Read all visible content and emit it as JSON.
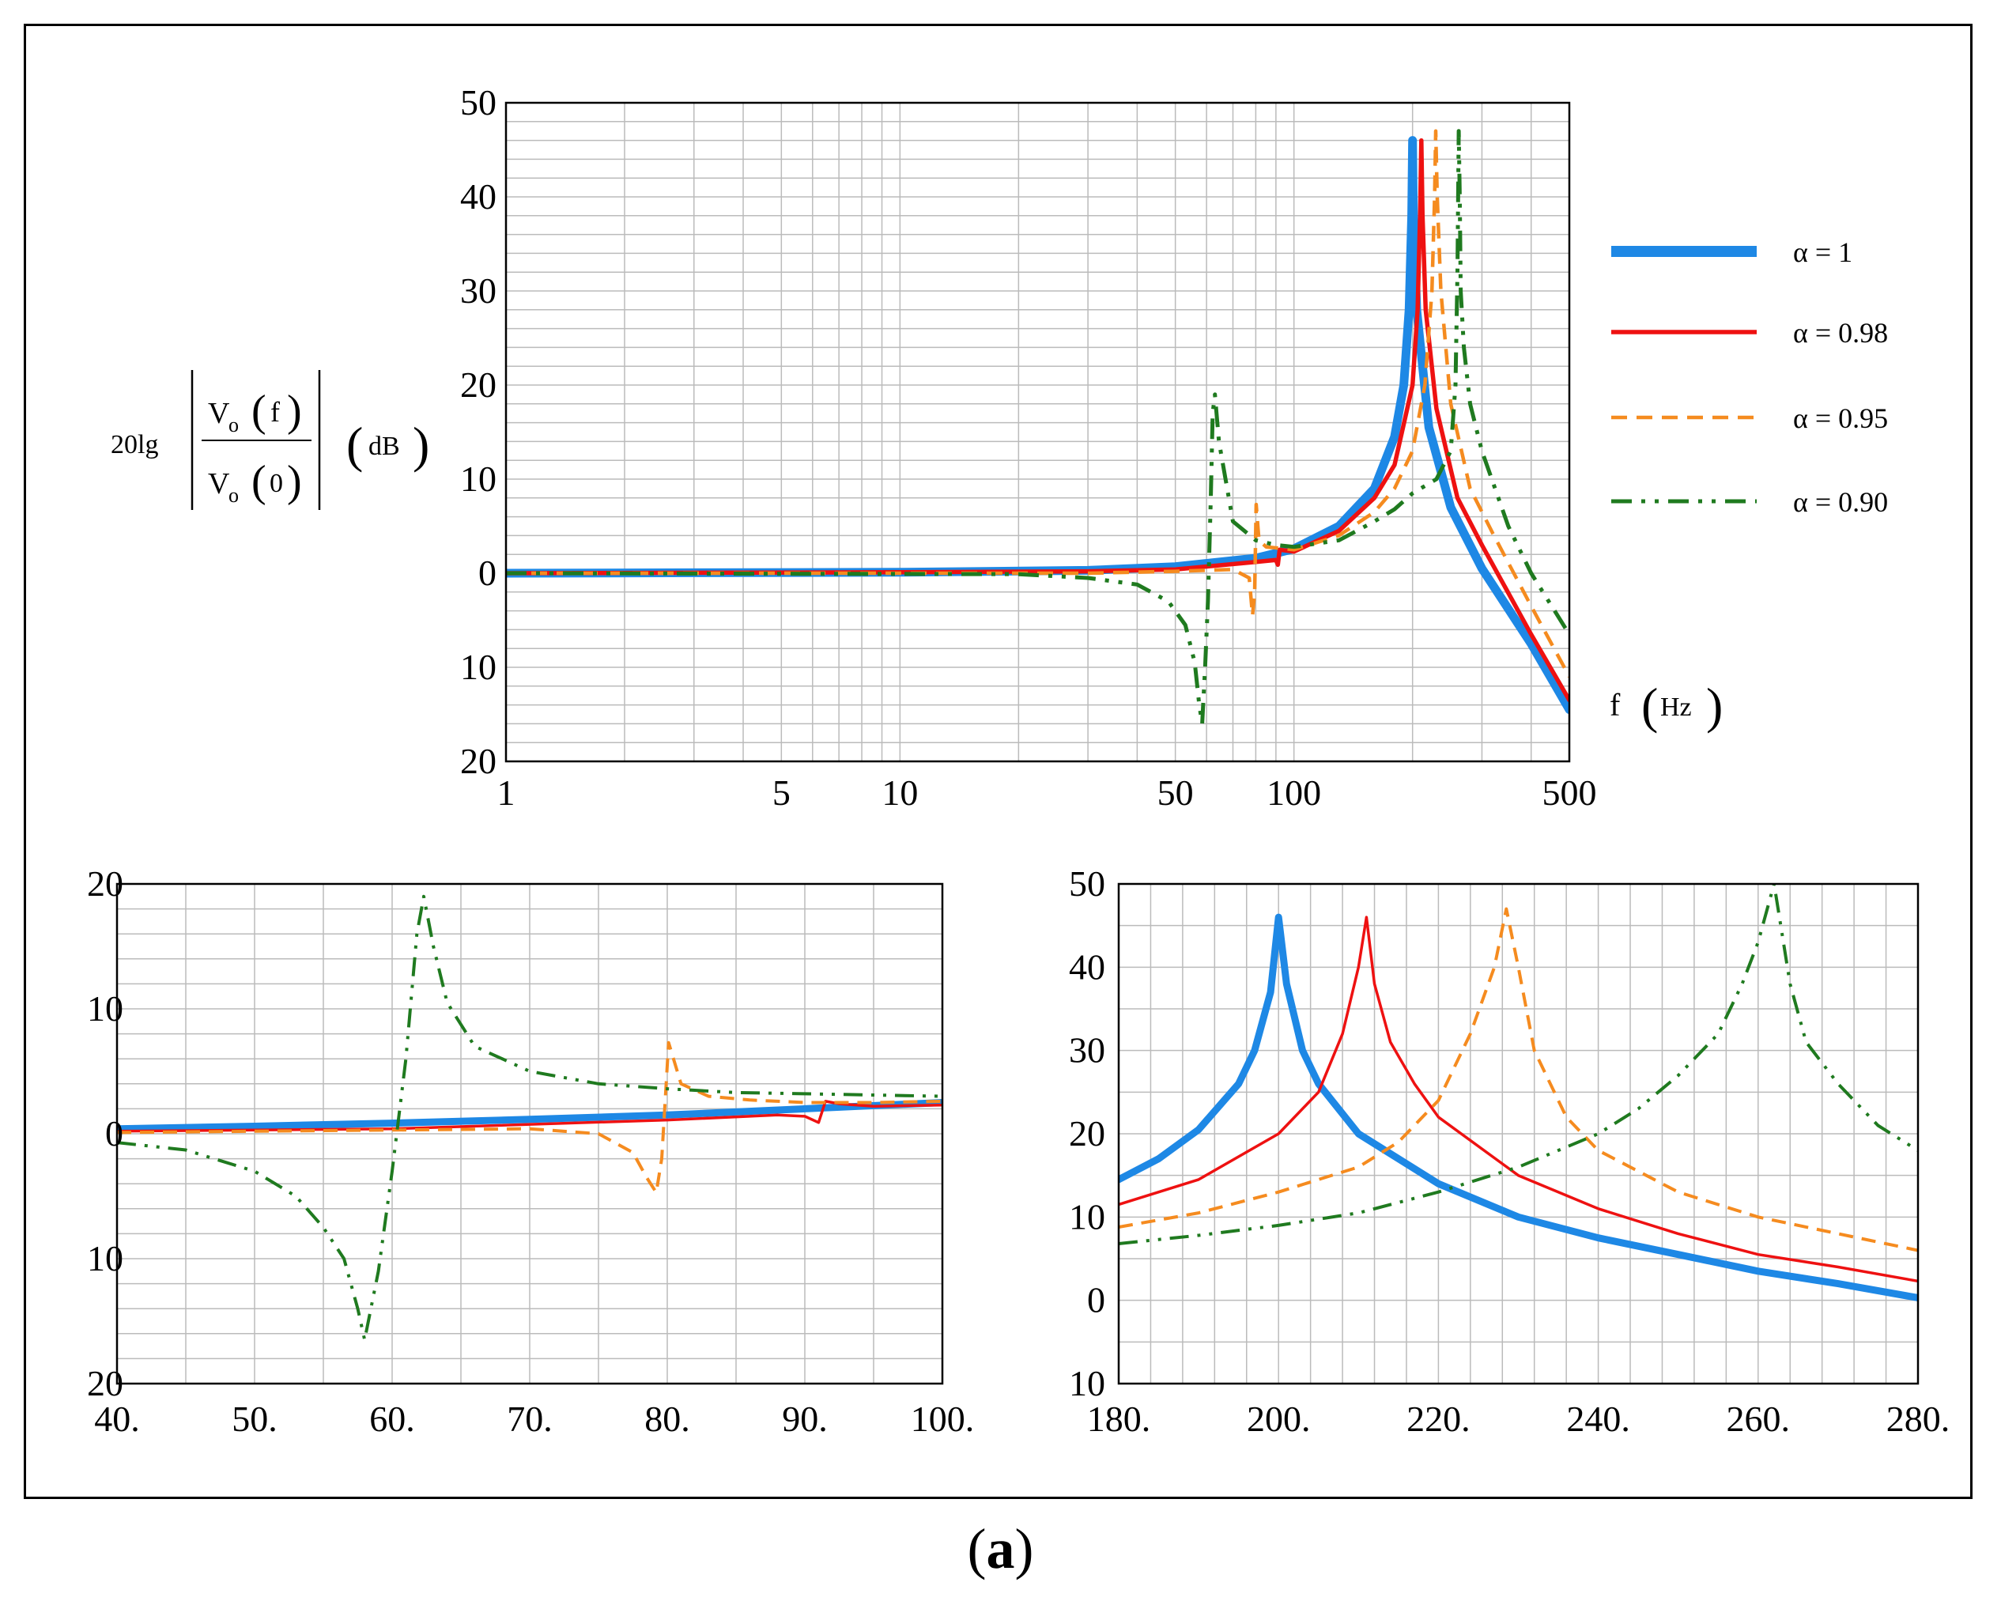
{
  "panel_label": {
    "open": "(",
    "letter": "a",
    "close": ")"
  },
  "colors": {
    "alpha_1": "#1E88E5",
    "alpha_098": "#EE1111",
    "alpha_095": "#F58B1F",
    "alpha_090": "#1F7A1F",
    "grid": "#BBBBBB"
  },
  "y_axis_label": {
    "prefix": "20lg",
    "numerator_v": "V",
    "numerator_sub": "o",
    "numerator_arg": "f",
    "denominator_v": "V",
    "denominator_sub": "o",
    "denominator_arg": "0",
    "unit": "dB"
  },
  "x_axis_label": {
    "var": "f",
    "unit": "Hz"
  },
  "legend": [
    {
      "label": "α = 1",
      "style": "solid-thick",
      "color_key": "alpha_1"
    },
    {
      "label": "α = 0.98",
      "style": "solid",
      "color_key": "alpha_098"
    },
    {
      "label": "α = 0.95",
      "style": "dashed",
      "color_key": "alpha_095"
    },
    {
      "label": "α = 0.90",
      "style": "dash-dot-dot",
      "color_key": "alpha_090"
    }
  ],
  "chart_data": [
    {
      "id": "main",
      "type": "line",
      "x_scale": "log",
      "xlim": [
        1,
        500
      ],
      "ylim": [
        -20,
        50
      ],
      "x_ticks": [
        1,
        5,
        10,
        50,
        100,
        500
      ],
      "x_tick_labels": [
        "1",
        "5",
        "10",
        "50",
        "100",
        "500"
      ],
      "y_ticks": [
        50,
        40,
        30,
        20,
        10,
        0,
        -10,
        -20
      ],
      "y_tick_labels": [
        "50",
        "40",
        "30",
        "20",
        "10",
        "0",
        "10",
        "20"
      ],
      "series": [
        {
          "name": "α = 1",
          "x": [
            1,
            10,
            30,
            50,
            80,
            100,
            130,
            160,
            180,
            190,
            196,
            199,
            200,
            201,
            205,
            220,
            250,
            300,
            400,
            500
          ],
          "y": [
            0,
            0.1,
            0.3,
            0.7,
            1.6,
            2.6,
            5,
            9,
            14.5,
            20,
            28,
            38,
            46,
            38,
            28,
            15.5,
            7,
            0.5,
            -7.5,
            -14.5
          ]
        },
        {
          "name": "α = 0.98",
          "x": [
            1,
            10,
            30,
            50,
            80,
            90,
            91,
            92,
            100,
            130,
            160,
            180,
            200,
            206,
            209,
            210.5,
            212,
            216,
            230,
            260,
            300,
            400,
            500
          ],
          "y": [
            0,
            0.1,
            0.2,
            0.4,
            1.2,
            1.4,
            0.9,
            2.5,
            2.3,
            4.5,
            8,
            11.5,
            20,
            28,
            38,
            46,
            38,
            28,
            17.5,
            8,
            3,
            -6.5,
            -13.5
          ]
        },
        {
          "name": "α = 0.95",
          "x": [
            1,
            30,
            50,
            70,
            77,
            78.5,
            79.5,
            80.2,
            81.5,
            85,
            100,
            130,
            160,
            180,
            200,
            215,
            224,
            227.5,
            229,
            231,
            236,
            250,
            280,
            320,
            400,
            500
          ],
          "y": [
            0,
            0,
            0.2,
            0.4,
            -0.5,
            -4.5,
            -2,
            7.3,
            3.5,
            2.8,
            2.5,
            4,
            6.5,
            9,
            13,
            20,
            30,
            40,
            47,
            40,
            30,
            18,
            9,
            4.2,
            -3.5,
            -11
          ]
        },
        {
          "name": "α = 0.90",
          "x": [
            1,
            20,
            30,
            40,
            48,
            53,
            56,
            57.5,
            58.5,
            59.5,
            60.5,
            61.5,
            62.2,
            63,
            64.5,
            70,
            80,
            90,
            100,
            130,
            160,
            180,
            200,
            230,
            250,
            257,
            260,
            262,
            263.5,
            265,
            270,
            280,
            300,
            350,
            400,
            500
          ],
          "y": [
            0,
            -0.1,
            -0.5,
            -1.2,
            -3,
            -5.5,
            -9.5,
            -14,
            -16,
            -10,
            -3,
            8,
            17,
            19,
            14,
            5.5,
            3.5,
            3,
            2.8,
            3.5,
            5.5,
            6.8,
            8.5,
            10,
            13,
            20,
            32,
            47,
            40,
            30,
            24,
            18,
            13,
            5,
            0,
            -6.5
          ]
        }
      ]
    },
    {
      "id": "zoom-low",
      "type": "line",
      "x_scale": "linear",
      "xlim": [
        40,
        100
      ],
      "ylim": [
        -20,
        20
      ],
      "x_ticks": [
        40,
        50,
        60,
        70,
        80,
        90,
        100
      ],
      "x_tick_labels": [
        "40.",
        "50.",
        "60.",
        "70.",
        "80.",
        "90.",
        "100."
      ],
      "y_ticks": [
        20,
        10,
        0,
        -10,
        -20
      ],
      "y_tick_labels": [
        "20",
        "10",
        "0",
        "10",
        "20"
      ],
      "series": [
        {
          "name": "α = 1",
          "x": [
            40,
            50,
            60,
            70,
            80,
            90,
            100
          ],
          "y": [
            0.4,
            0.6,
            0.85,
            1.15,
            1.5,
            2.0,
            2.5
          ]
        },
        {
          "name": "α = 0.98",
          "x": [
            40,
            60,
            80,
            88,
            90,
            91,
            91.5,
            92.5,
            95,
            100
          ],
          "y": [
            0.2,
            0.4,
            1.1,
            1.5,
            1.4,
            0.9,
            2.6,
            2.4,
            2.2,
            2.3
          ]
        },
        {
          "name": "α = 0.95",
          "x": [
            40,
            50,
            60,
            70,
            75,
            77.5,
            78.5,
            79.2,
            79.6,
            80.1,
            81,
            83,
            86,
            90,
            95,
            100
          ],
          "y": [
            0.1,
            0.2,
            0.3,
            0.4,
            0,
            -1.5,
            -3.5,
            -4.7,
            -2,
            7.3,
            4,
            3,
            2.7,
            2.5,
            2.5,
            2.6
          ]
        },
        {
          "name": "α = 0.90",
          "x": [
            40,
            45,
            50,
            53,
            55,
            56.5,
            57.5,
            58,
            59,
            60,
            61,
            61.8,
            62.3,
            63,
            64,
            66,
            70,
            75,
            80,
            85,
            90,
            95,
            100
          ],
          "y": [
            -0.7,
            -1.3,
            -3,
            -5,
            -7.5,
            -10,
            -14,
            -16.5,
            -11,
            -3,
            6,
            16,
            19,
            15,
            10.5,
            7,
            5,
            4,
            3.6,
            3.3,
            3.2,
            3.1,
            3
          ]
        }
      ]
    },
    {
      "id": "zoom-high",
      "type": "line",
      "x_scale": "linear",
      "xlim": [
        180,
        280
      ],
      "ylim": [
        -10,
        50
      ],
      "x_ticks": [
        180,
        200,
        220,
        240,
        260,
        280
      ],
      "x_tick_labels": [
        "180.",
        "200.",
        "220.",
        "240.",
        "260.",
        "280."
      ],
      "y_ticks": [
        50,
        40,
        30,
        20,
        10,
        0,
        -10
      ],
      "y_tick_labels": [
        "50",
        "40",
        "30",
        "20",
        "10",
        "0",
        "10"
      ],
      "series": [
        {
          "name": "α = 1",
          "x": [
            180,
            185,
            190,
            195,
            197,
            199,
            200,
            201,
            203,
            205,
            210,
            220,
            230,
            240,
            250,
            260,
            270,
            280
          ],
          "y": [
            14.5,
            17,
            20.5,
            26,
            30,
            37,
            46,
            38,
            30,
            26,
            20,
            14,
            10,
            7.5,
            5.5,
            3.5,
            2,
            0.3
          ]
        },
        {
          "name": "α = 0.98",
          "x": [
            180,
            190,
            200,
            205,
            208,
            210,
            211,
            212,
            214,
            217,
            220,
            230,
            240,
            250,
            260,
            270,
            280
          ],
          "y": [
            11.5,
            14.5,
            20,
            25,
            32,
            40,
            46,
            38,
            31,
            26,
            22,
            15,
            11,
            8,
            5.5,
            4,
            2.3
          ]
        },
        {
          "name": "α = 0.95",
          "x": [
            180,
            190,
            200,
            210,
            215,
            220,
            224,
            227,
            228.5,
            230,
            232,
            236,
            240,
            250,
            260,
            270,
            280
          ],
          "y": [
            8.8,
            10.5,
            13,
            16,
            19,
            24,
            32,
            40,
            47,
            40,
            30,
            22,
            18,
            13,
            10,
            8,
            6
          ]
        },
        {
          "name": "α = 0.90",
          "x": [
            180,
            190,
            200,
            210,
            220,
            230,
            240,
            245,
            250,
            255,
            258,
            260,
            262,
            263,
            264,
            266,
            270,
            275,
            280
          ],
          "y": [
            6.8,
            7.8,
            9,
            10.5,
            13,
            16,
            20,
            23,
            27,
            32,
            38,
            43,
            50,
            44,
            38,
            31,
            26,
            21,
            18
          ]
        }
      ]
    }
  ]
}
